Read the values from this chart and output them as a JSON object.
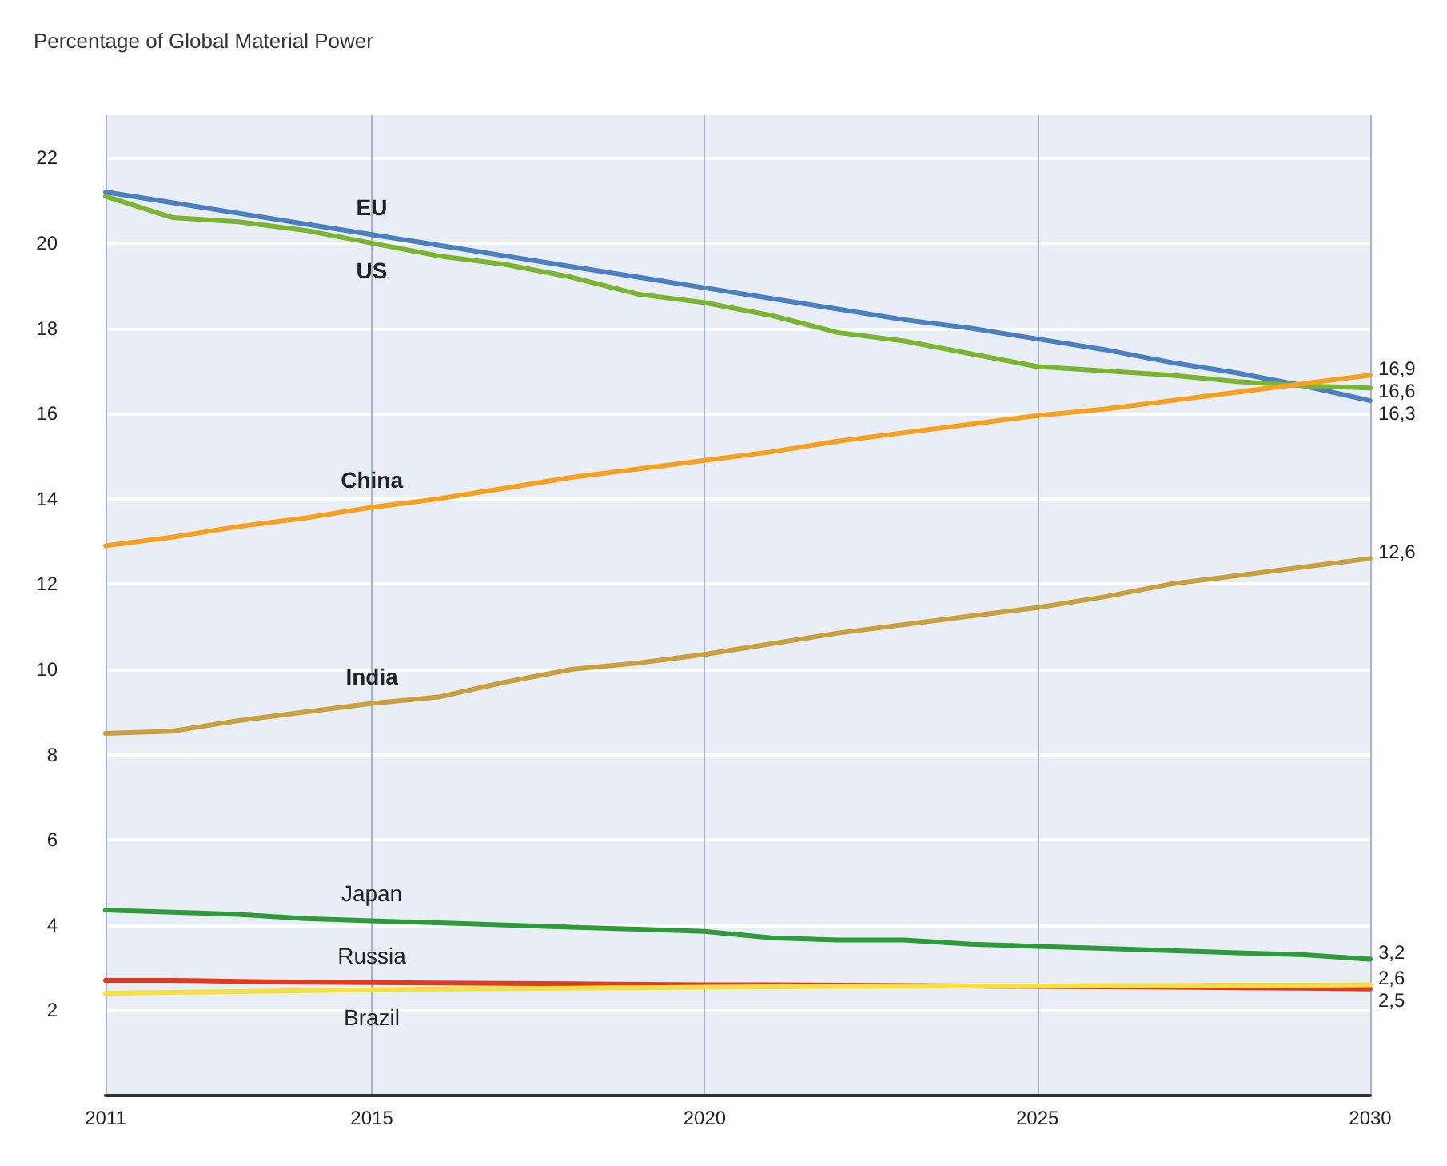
{
  "chart_data": {
    "type": "line",
    "title": "Percentage of Global Material Power",
    "x": [
      2011,
      2012,
      2013,
      2014,
      2015,
      2016,
      2017,
      2018,
      2019,
      2020,
      2021,
      2022,
      2023,
      2024,
      2025,
      2026,
      2027,
      2028,
      2029,
      2030
    ],
    "xlim": [
      2011,
      2030
    ],
    "xticks": [
      2011,
      2015,
      2020,
      2025,
      2030
    ],
    "ylim": [
      0,
      23
    ],
    "yticks": [
      2,
      4,
      6,
      8,
      10,
      12,
      14,
      16,
      18,
      20,
      22
    ],
    "grid": true,
    "legend": false,
    "marker": "none",
    "line_style": "solid",
    "series": [
      {
        "name": "EU",
        "color": "#4a7fc1",
        "values": [
          21.2,
          20.95,
          20.7,
          20.45,
          20.2,
          19.95,
          19.7,
          19.45,
          19.2,
          18.95,
          18.7,
          18.45,
          18.2,
          18.0,
          17.75,
          17.5,
          17.2,
          16.95,
          16.65,
          16.3
        ],
        "value_labels": [
          null,
          null,
          null,
          null,
          null,
          null,
          null,
          null,
          null,
          null,
          null,
          null,
          null,
          null,
          null,
          null,
          null,
          null,
          null,
          "16,3"
        ]
      },
      {
        "name": "US",
        "color": "#7ab532",
        "values": [
          21.1,
          20.6,
          20.5,
          20.3,
          20.0,
          19.7,
          19.5,
          19.2,
          18.8,
          18.6,
          18.3,
          17.9,
          17.7,
          17.4,
          17.1,
          17.0,
          16.9,
          16.75,
          16.65,
          16.6
        ],
        "value_labels": [
          null,
          null,
          null,
          null,
          null,
          null,
          null,
          null,
          null,
          null,
          null,
          null,
          null,
          null,
          null,
          null,
          null,
          null,
          null,
          "16,6"
        ]
      },
      {
        "name": "China",
        "color": "#f5a020",
        "values": [
          12.9,
          13.1,
          13.35,
          13.55,
          13.8,
          14.0,
          14.25,
          14.5,
          14.7,
          14.9,
          15.1,
          15.35,
          15.55,
          15.75,
          15.95,
          16.1,
          16.3,
          16.5,
          16.7,
          16.9
        ],
        "value_labels": [
          null,
          null,
          null,
          null,
          null,
          null,
          null,
          null,
          null,
          null,
          null,
          null,
          null,
          null,
          null,
          null,
          null,
          null,
          null,
          "16,9"
        ]
      },
      {
        "name": "India",
        "color": "#c8a040",
        "values": [
          8.5,
          8.55,
          8.8,
          9.0,
          9.2,
          9.35,
          9.7,
          10.0,
          10.15,
          10.35,
          10.6,
          10.85,
          11.05,
          11.25,
          11.45,
          11.7,
          12.0,
          12.2,
          12.4,
          12.6
        ],
        "value_labels": [
          null,
          null,
          null,
          null,
          null,
          null,
          null,
          null,
          null,
          null,
          null,
          null,
          null,
          null,
          null,
          null,
          null,
          null,
          null,
          "12,6"
        ]
      },
      {
        "name": "Japan",
        "color": "#2e9a3a",
        "values": [
          4.35,
          4.3,
          4.25,
          4.15,
          4.1,
          4.05,
          4.0,
          3.95,
          3.9,
          3.85,
          3.7,
          3.65,
          3.65,
          3.55,
          3.5,
          3.45,
          3.4,
          3.35,
          3.3,
          3.2
        ],
        "value_labels": [
          null,
          null,
          null,
          null,
          null,
          null,
          null,
          null,
          null,
          null,
          null,
          null,
          null,
          null,
          null,
          null,
          null,
          null,
          null,
          "3,2"
        ]
      },
      {
        "name": "Russia",
        "color": "#e03a20",
        "values": [
          2.7,
          2.7,
          2.68,
          2.66,
          2.65,
          2.64,
          2.63,
          2.62,
          2.61,
          2.6,
          2.6,
          2.59,
          2.58,
          2.57,
          2.56,
          2.55,
          2.54,
          2.53,
          2.52,
          2.5
        ],
        "value_labels": [
          null,
          null,
          null,
          null,
          null,
          null,
          null,
          null,
          null,
          null,
          null,
          null,
          null,
          null,
          null,
          null,
          null,
          null,
          null,
          "2,5"
        ]
      },
      {
        "name": "Brazil",
        "color": "#f4e040",
        "values": [
          2.4,
          2.42,
          2.44,
          2.46,
          2.48,
          2.5,
          2.51,
          2.52,
          2.53,
          2.54,
          2.55,
          2.56,
          2.56,
          2.57,
          2.57,
          2.58,
          2.58,
          2.59,
          2.59,
          2.6
        ],
        "value_labels": [
          null,
          null,
          null,
          null,
          null,
          null,
          null,
          null,
          null,
          null,
          null,
          null,
          null,
          null,
          null,
          null,
          null,
          null,
          null,
          "2,6"
        ]
      }
    ]
  }
}
